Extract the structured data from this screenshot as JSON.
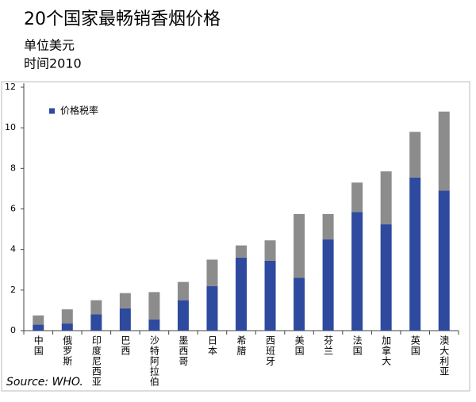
{
  "chart_data": {
    "type": "stacked_bar",
    "title": "20个国家最畅销香烟价格",
    "subtitle": "单位美元",
    "note": "时间2010",
    "source": "Source: WHO.",
    "categories": [
      "中国",
      "俄罗斯",
      "印度尼西亚",
      "巴西",
      "沙特阿拉伯",
      "墨西哥",
      "日本",
      "希腊",
      "西班牙",
      "美国",
      "芬兰",
      "法国",
      "加拿大",
      "英国",
      "澳大利亚"
    ],
    "series": [
      {
        "name": "价格税率",
        "color": "#2e4a9e",
        "values": [
          0.3,
          0.35,
          0.8,
          1.1,
          0.55,
          1.5,
          2.2,
          3.6,
          3.45,
          2.6,
          4.5,
          5.85,
          5.25,
          7.55,
          6.9
        ]
      },
      {
        "color": "#8c8c8c",
        "values": [
          0.45,
          0.7,
          0.7,
          0.75,
          1.35,
          0.9,
          1.3,
          0.6,
          1.0,
          3.15,
          1.25,
          1.45,
          2.6,
          2.25,
          3.9
        ]
      }
    ],
    "ylim": [
      0,
      12
    ],
    "yticks": [
      0,
      2,
      4,
      6,
      8,
      10,
      12
    ],
    "legend": "top-left"
  }
}
